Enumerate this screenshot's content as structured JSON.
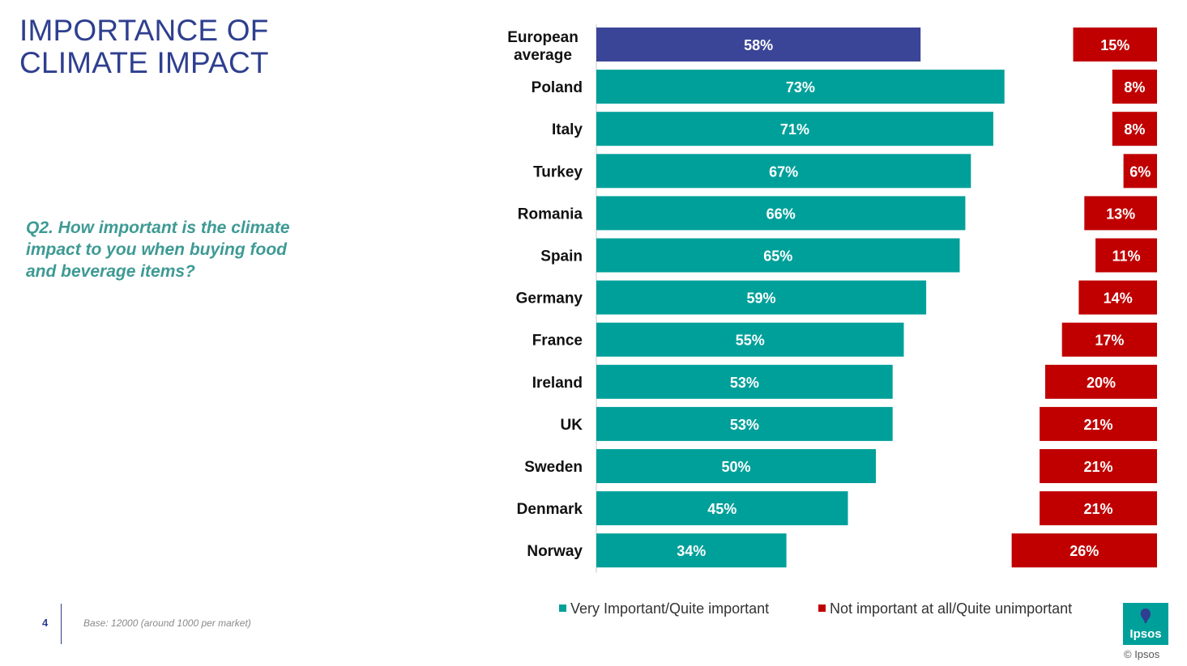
{
  "title": "IMPORTANCE OF CLIMATE IMPACT",
  "question": "Q2. How important is the climate impact to you when buying food and beverage items?",
  "footer": {
    "page_number": "4",
    "base_note": "Base: 12000 (around 1000 per market)"
  },
  "logo": {
    "text": "Ipsos",
    "copyright": "© Ipsos"
  },
  "colors": {
    "important": "#00a09a",
    "average": "#3b4598",
    "unimportant": "#c00000",
    "title": "#2e3f8f",
    "question": "#3e9a94"
  },
  "chart_data": {
    "type": "bar",
    "orientation": "horizontal",
    "title": "",
    "categories": [
      "European average",
      "Poland",
      "Italy",
      "Turkey",
      "Romania",
      "Spain",
      "Germany",
      "France",
      "Ireland",
      "UK",
      "Sweden",
      "Denmark",
      "Norway"
    ],
    "series": [
      {
        "name": "Very Important/Quite important",
        "values": [
          58,
          73,
          71,
          67,
          66,
          65,
          59,
          55,
          53,
          53,
          50,
          45,
          34
        ],
        "labels": [
          "58%",
          "73%",
          "71%",
          "67%",
          "66%",
          "65%",
          "59%",
          "55%",
          "53%",
          "53%",
          "50%",
          "45%",
          "34%"
        ]
      },
      {
        "name": "Not important at all/Quite unimportant",
        "values": [
          15,
          8,
          8,
          6,
          13,
          11,
          14,
          17,
          20,
          21,
          21,
          21,
          26
        ],
        "labels": [
          "15%",
          "8%",
          "8%",
          "6%",
          "13%",
          "11%",
          "14%",
          "17%",
          "20%",
          "21%",
          "21%",
          "21%",
          "26%"
        ]
      }
    ],
    "highlight_category": "European average",
    "xlim": [
      0,
      100
    ],
    "legend_position": "bottom"
  }
}
